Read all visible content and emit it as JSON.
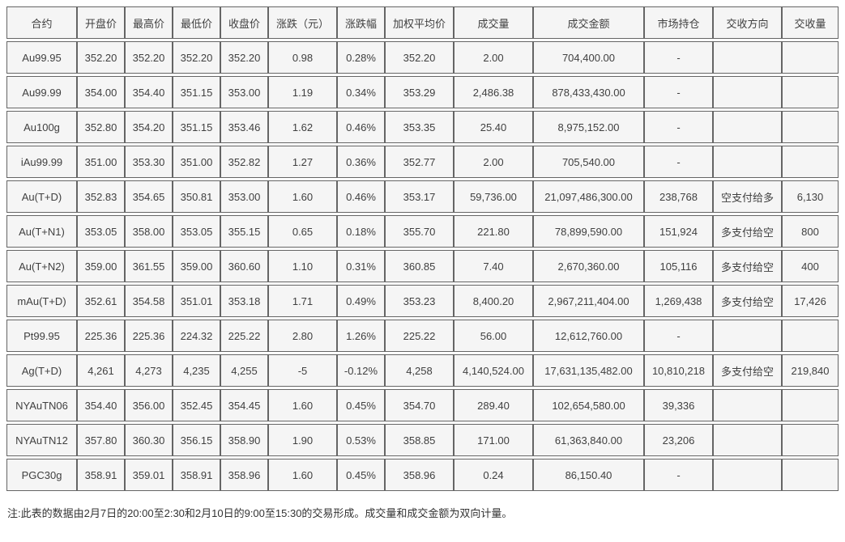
{
  "chart_data": {
    "type": "table",
    "columns": [
      "合约",
      "开盘价",
      "最高价",
      "最低价",
      "收盘价",
      "涨跌（元）",
      "涨跌幅",
      "加权平均价",
      "成交量",
      "成交金额",
      "市场持仓",
      "交收方向",
      "交收量"
    ],
    "rows": [
      [
        "Au99.95",
        "352.20",
        "352.20",
        "352.20",
        "352.20",
        "0.98",
        "0.28%",
        "352.20",
        "2.00",
        "704,400.00",
        "-",
        "",
        ""
      ],
      [
        "Au99.99",
        "354.00",
        "354.40",
        "351.15",
        "353.00",
        "1.19",
        "0.34%",
        "353.29",
        "2,486.38",
        "878,433,430.00",
        "-",
        "",
        ""
      ],
      [
        "Au100g",
        "352.80",
        "354.20",
        "351.15",
        "353.46",
        "1.62",
        "0.46%",
        "353.35",
        "25.40",
        "8,975,152.00",
        "-",
        "",
        ""
      ],
      [
        "iAu99.99",
        "351.00",
        "353.30",
        "351.00",
        "352.82",
        "1.27",
        "0.36%",
        "352.77",
        "2.00",
        "705,540.00",
        "-",
        "",
        ""
      ],
      [
        "Au(T+D)",
        "352.83",
        "354.65",
        "350.81",
        "353.00",
        "1.60",
        "0.46%",
        "353.17",
        "59,736.00",
        "21,097,486,300.00",
        "238,768",
        "空支付给多",
        "6,130"
      ],
      [
        "Au(T+N1)",
        "353.05",
        "358.00",
        "353.05",
        "355.15",
        "0.65",
        "0.18%",
        "355.70",
        "221.80",
        "78,899,590.00",
        "151,924",
        "多支付给空",
        "800"
      ],
      [
        "Au(T+N2)",
        "359.00",
        "361.55",
        "359.00",
        "360.60",
        "1.10",
        "0.31%",
        "360.85",
        "7.40",
        "2,670,360.00",
        "105,116",
        "多支付给空",
        "400"
      ],
      [
        "mAu(T+D)",
        "352.61",
        "354.58",
        "351.01",
        "353.18",
        "1.71",
        "0.49%",
        "353.23",
        "8,400.20",
        "2,967,211,404.00",
        "1,269,438",
        "多支付给空",
        "17,426"
      ],
      [
        "Pt99.95",
        "225.36",
        "225.36",
        "224.32",
        "225.22",
        "2.80",
        "1.26%",
        "225.22",
        "56.00",
        "12,612,760.00",
        "-",
        "",
        ""
      ],
      [
        "Ag(T+D)",
        "4,261",
        "4,273",
        "4,235",
        "4,255",
        "-5",
        "-0.12%",
        "4,258",
        "4,140,524.00",
        "17,631,135,482.00",
        "10,810,218",
        "多支付给空",
        "219,840"
      ],
      [
        "NYAuTN06",
        "354.40",
        "356.00",
        "352.45",
        "354.45",
        "1.60",
        "0.45%",
        "354.70",
        "289.40",
        "102,654,580.00",
        "39,336",
        "",
        ""
      ],
      [
        "NYAuTN12",
        "357.80",
        "360.30",
        "356.15",
        "358.90",
        "1.90",
        "0.53%",
        "358.85",
        "171.00",
        "61,363,840.00",
        "23,206",
        "",
        ""
      ],
      [
        "PGC30g",
        "358.91",
        "359.01",
        "358.91",
        "358.96",
        "1.60",
        "0.45%",
        "358.96",
        "0.24",
        "86,150.40",
        "-",
        "",
        ""
      ]
    ],
    "title": "",
    "layout_hints": {
      "grid": true,
      "all_cells_centered": true
    }
  },
  "footnote": "注:此表的数据由2月7日的20:00至2:30和2月10日的9:00至15:30的交易形成。成交量和成交金额为双向计量。",
  "colors": {
    "cell_background": "#f5f5f5",
    "border": "#656565",
    "text": "#404040",
    "page_background": "#ffffff"
  }
}
